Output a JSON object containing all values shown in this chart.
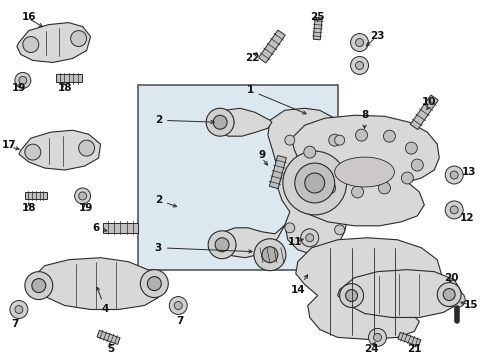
{
  "fig_bg": "#ffffff",
  "line_color": "#2a2a2a",
  "box_fill": "#dce8f0",
  "box_edge": "#444444",
  "part_fill": "#e8e8e8",
  "part_edge": "#2a2a2a",
  "text_color": "#111111",
  "label_fs": 7.5,
  "arrow_lw": 0.7,
  "part_lw": 0.8
}
